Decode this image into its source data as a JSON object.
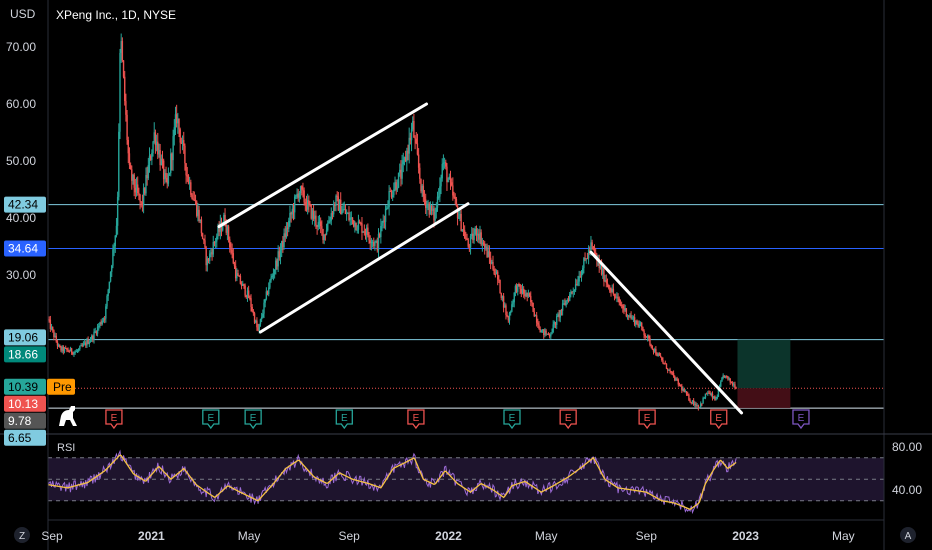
{
  "header": {
    "currency": "USD",
    "symbol": "XPeng Inc., 1D, NYSE"
  },
  "colors": {
    "background": "#000000",
    "up": "#26a69a",
    "down": "#ef5350",
    "trendline": "#ffffff",
    "level_light": "#80cbe0",
    "level_blue": "#2962ff",
    "level_teal": "#4fb0b0",
    "rsi_line": "#9c6bd6",
    "rsi_ma": "#f5c242",
    "rsi_band": "#2b1d40"
  },
  "chart_data": {
    "type": "candlestick",
    "yaxis": {
      "min": 5.5,
      "max": 76,
      "ticks": [
        "70.00",
        "60.00",
        "50.00",
        "40.00",
        "30.00"
      ],
      "tick_values": [
        70,
        60,
        50,
        40,
        30
      ]
    },
    "xaxis": {
      "labels": [
        "Sep",
        "2021",
        "May",
        "Sep",
        "2022",
        "May",
        "Sep",
        "2023",
        "May"
      ],
      "label_dates": [
        "2020-09-01",
        "2021-01-01",
        "2021-05-01",
        "2021-09-01",
        "2022-01-01",
        "2022-05-01",
        "2022-09-01",
        "2023-01-01",
        "2023-05-01"
      ],
      "start_date": "2020-08-27",
      "end_date": "2023-06-20"
    },
    "price_path": [
      [
        "2020-08-27",
        22.0
      ],
      [
        "2020-09-10",
        17.0
      ],
      [
        "2020-10-01",
        16.5
      ],
      [
        "2020-10-20",
        19.0
      ],
      [
        "2020-11-05",
        23.0
      ],
      [
        "2020-11-20",
        40.0
      ],
      [
        "2020-11-24",
        72.0
      ],
      [
        "2020-12-05",
        48.0
      ],
      [
        "2020-12-20",
        42.0
      ],
      [
        "2021-01-05",
        55.0
      ],
      [
        "2021-01-20",
        45.0
      ],
      [
        "2021-02-01",
        58.0
      ],
      [
        "2021-02-15",
        47.0
      ],
      [
        "2021-03-01",
        40.0
      ],
      [
        "2021-03-10",
        32.0
      ],
      [
        "2021-03-20",
        36.0
      ],
      [
        "2021-04-01",
        40.0
      ],
      [
        "2021-04-15",
        30.0
      ],
      [
        "2021-05-01",
        26.0
      ],
      [
        "2021-05-12",
        20.0
      ],
      [
        "2021-05-25",
        28.0
      ],
      [
        "2021-06-10",
        35.0
      ],
      [
        "2021-07-01",
        45.0
      ],
      [
        "2021-07-20",
        40.0
      ],
      [
        "2021-08-01",
        37.0
      ],
      [
        "2021-08-15",
        43.0
      ],
      [
        "2021-09-01",
        40.0
      ],
      [
        "2021-09-20",
        38.0
      ],
      [
        "2021-10-05",
        35.0
      ],
      [
        "2021-10-20",
        44.0
      ],
      [
        "2021-11-05",
        48.0
      ],
      [
        "2021-11-18",
        56.0
      ],
      [
        "2021-11-30",
        44.0
      ],
      [
        "2021-12-15",
        40.0
      ],
      [
        "2021-12-25",
        50.0
      ],
      [
        "2022-01-10",
        42.0
      ],
      [
        "2022-01-25",
        35.0
      ],
      [
        "2022-02-05",
        38.0
      ],
      [
        "2022-02-20",
        33.0
      ],
      [
        "2022-03-01",
        30.0
      ],
      [
        "2022-03-15",
        22.0
      ],
      [
        "2022-03-25",
        28.0
      ],
      [
        "2022-04-10",
        26.0
      ],
      [
        "2022-04-25",
        20.0
      ],
      [
        "2022-05-05",
        19.5
      ],
      [
        "2022-05-20",
        24.0
      ],
      [
        "2022-06-05",
        28.0
      ],
      [
        "2022-06-25",
        35.0
      ],
      [
        "2022-07-10",
        30.0
      ],
      [
        "2022-07-25",
        26.0
      ],
      [
        "2022-08-10",
        23.0
      ],
      [
        "2022-08-25",
        21.0
      ],
      [
        "2022-09-10",
        17.0
      ],
      [
        "2022-09-25",
        14.0
      ],
      [
        "2022-10-10",
        11.0
      ],
      [
        "2022-10-25",
        8.0
      ],
      [
        "2022-11-05",
        6.9
      ],
      [
        "2022-11-15",
        9.5
      ],
      [
        "2022-11-25",
        8.0
      ],
      [
        "2022-12-05",
        12.5
      ],
      [
        "2022-12-15",
        11.0
      ],
      [
        "2022-12-21",
        10.4
      ]
    ],
    "levels": [
      {
        "label": "42.34",
        "value": 42.34,
        "color": "#80cbe0",
        "start_date": "2020-08-01"
      },
      {
        "label": "34.64",
        "value": 34.64,
        "color": "#2962ff",
        "start_date": "2020-08-27"
      },
      {
        "label": "18.66",
        "value": 18.66,
        "color": "#80cbe0",
        "start_date": "2020-08-01"
      },
      {
        "label": "6.65",
        "value": 6.65,
        "color": "#d8e6f0",
        "start_date": "2020-08-01"
      }
    ],
    "price_labels": [
      {
        "label": "42.34",
        "value": 42.34,
        "bg": "#80cbe0",
        "fg": "#000000"
      },
      {
        "label": "34.64",
        "value": 34.64,
        "bg": "#2962ff",
        "fg": "#ffffff"
      },
      {
        "label": "19.06",
        "value": 19.06,
        "bg": "#80cbe0",
        "fg": "#000000"
      },
      {
        "label": "18.66",
        "value": 18.66,
        "bg": "#00897b",
        "fg": "#ffffff"
      },
      {
        "label": "10.39",
        "value": 10.39,
        "bg": "#26a69a",
        "fg": "#000000"
      },
      {
        "label": "10.13",
        "value": 10.13,
        "bg": "#ef5350",
        "fg": "#ffffff"
      },
      {
        "label": "9.78",
        "value": 9.78,
        "bg": "#555555",
        "fg": "#ffffff"
      },
      {
        "label": "6.65",
        "value": 6.65,
        "bg": "#80cbe0",
        "fg": "#000000"
      }
    ],
    "pre_tag": "Pre",
    "current_price": 10.13,
    "trendlines": [
      {
        "from": [
          "2021-03-25",
          38.5
        ],
        "to": [
          "2021-12-05",
          60.0
        ]
      },
      {
        "from": [
          "2021-05-15",
          20.0
        ],
        "to": [
          "2022-01-25",
          42.5
        ]
      },
      {
        "from": [
          "2022-06-25",
          34.0
        ],
        "to": [
          "2022-12-27",
          5.8
        ]
      }
    ],
    "position_box": {
      "start_date": "2022-12-22",
      "end_date": "2023-02-25",
      "entry": 10.13,
      "target": 18.66,
      "stop": 6.65
    },
    "earnings": [
      {
        "date": "2020-11-16",
        "label": "E",
        "type": "down"
      },
      {
        "date": "2021-03-15",
        "label": "E",
        "type": "up"
      },
      {
        "date": "2021-05-06",
        "label": "E",
        "type": "up"
      },
      {
        "date": "2021-08-26",
        "label": "E",
        "type": "up"
      },
      {
        "date": "2021-11-22",
        "label": "E",
        "type": "down"
      },
      {
        "date": "2022-03-20",
        "label": "E",
        "type": "up"
      },
      {
        "date": "2022-05-28",
        "label": "E",
        "type": "down"
      },
      {
        "date": "2022-09-02",
        "label": "E",
        "type": "down"
      },
      {
        "date": "2022-11-29",
        "label": "E",
        "type": "down"
      },
      {
        "date": "2023-03-10",
        "label": "E",
        "type": "future"
      }
    ]
  },
  "rsi": {
    "label": "RSI",
    "ticks": [
      "80.00",
      "40.00"
    ],
    "tick_values": [
      80,
      40
    ],
    "upper": 70,
    "middle": 50,
    "lower": 30,
    "series": [
      [
        "2020-08-27",
        45
      ],
      [
        "2020-09-20",
        42
      ],
      [
        "2020-10-15",
        47
      ],
      [
        "2020-11-05",
        58
      ],
      [
        "2020-11-24",
        73
      ],
      [
        "2020-12-10",
        55
      ],
      [
        "2020-12-25",
        48
      ],
      [
        "2021-01-10",
        62
      ],
      [
        "2021-01-25",
        50
      ],
      [
        "2021-02-10",
        60
      ],
      [
        "2021-02-25",
        45
      ],
      [
        "2021-03-10",
        38
      ],
      [
        "2021-03-20",
        33
      ],
      [
        "2021-04-05",
        44
      ],
      [
        "2021-04-20",
        38
      ],
      [
        "2021-05-12",
        30
      ],
      [
        "2021-05-30",
        45
      ],
      [
        "2021-06-15",
        60
      ],
      [
        "2021-07-01",
        68
      ],
      [
        "2021-07-20",
        52
      ],
      [
        "2021-08-05",
        46
      ],
      [
        "2021-08-20",
        56
      ],
      [
        "2021-09-05",
        50
      ],
      [
        "2021-09-25",
        46
      ],
      [
        "2021-10-10",
        42
      ],
      [
        "2021-10-25",
        60
      ],
      [
        "2021-11-10",
        66
      ],
      [
        "2021-11-20",
        70
      ],
      [
        "2021-12-01",
        50
      ],
      [
        "2021-12-15",
        45
      ],
      [
        "2021-12-28",
        58
      ],
      [
        "2022-01-12",
        46
      ],
      [
        "2022-01-28",
        38
      ],
      [
        "2022-02-10",
        46
      ],
      [
        "2022-02-25",
        40
      ],
      [
        "2022-03-10",
        33
      ],
      [
        "2022-03-20",
        44
      ],
      [
        "2022-04-05",
        48
      ],
      [
        "2022-04-25",
        38
      ],
      [
        "2022-05-10",
        44
      ],
      [
        "2022-05-28",
        52
      ],
      [
        "2022-06-15",
        62
      ],
      [
        "2022-06-28",
        70
      ],
      [
        "2022-07-12",
        50
      ],
      [
        "2022-07-28",
        42
      ],
      [
        "2022-08-15",
        40
      ],
      [
        "2022-09-01",
        38
      ],
      [
        "2022-09-20",
        30
      ],
      [
        "2022-10-05",
        28
      ],
      [
        "2022-10-25",
        22
      ],
      [
        "2022-11-05",
        28
      ],
      [
        "2022-11-12",
        45
      ],
      [
        "2022-11-22",
        58
      ],
      [
        "2022-12-01",
        68
      ],
      [
        "2022-12-10",
        60
      ],
      [
        "2022-12-21",
        66
      ]
    ]
  },
  "footer": {
    "left_badge": "Z",
    "right_badge": "A"
  }
}
